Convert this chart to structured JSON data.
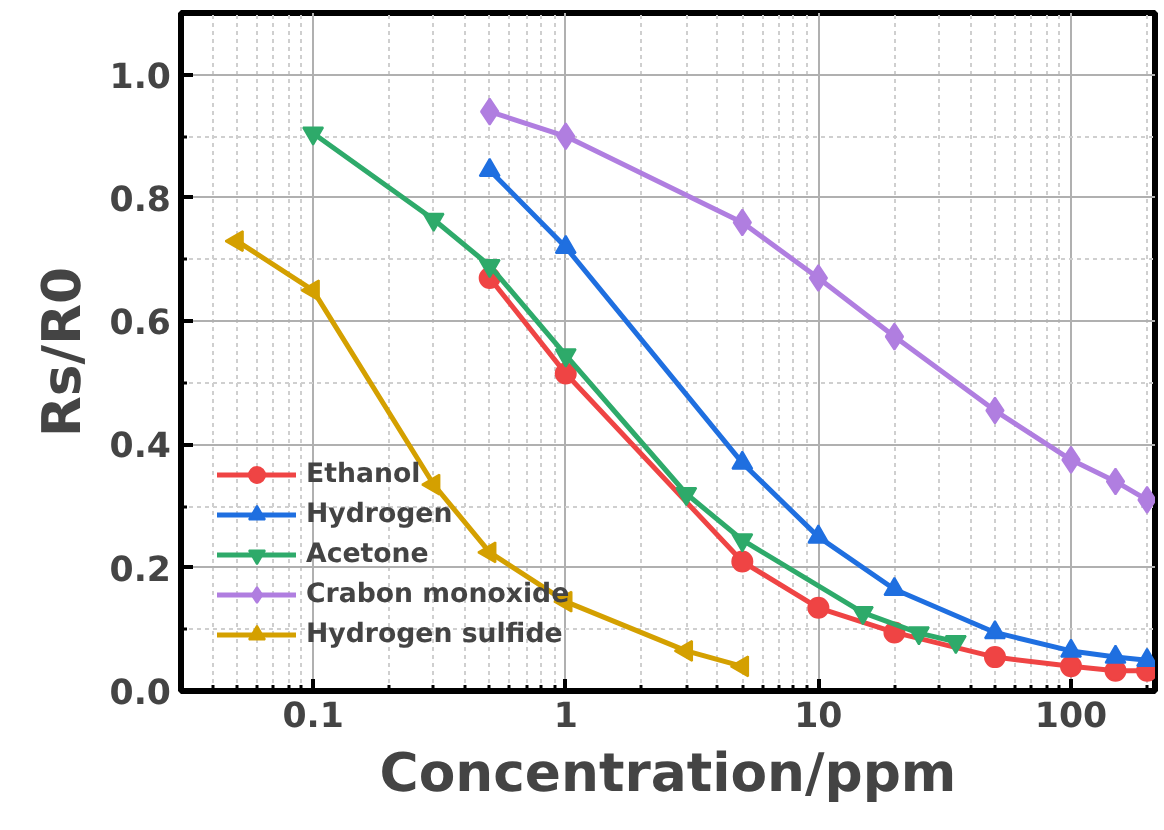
{
  "chart_data": {
    "type": "line",
    "xlabel": "Concentration/ppm",
    "ylabel": "Rs/R0",
    "log": "x",
    "xlim": [
      0.03,
      215
    ],
    "ylim": [
      0,
      1.1
    ],
    "xticks": [
      {
        "value": 0.1,
        "label": "0.1"
      },
      1,
      10,
      100
    ],
    "yticks": [
      {
        "value": 0,
        "label": "0.0"
      },
      {
        "value": 0.2,
        "label": "0.2"
      },
      {
        "value": 0.4,
        "label": "0.4"
      },
      {
        "value": 0.6,
        "label": "0.6"
      },
      {
        "value": 0.8,
        "label": "0.8"
      },
      {
        "value": 1,
        "label": "1.0"
      }
    ],
    "grid": true,
    "legend": "bottom left",
    "line_style": "solid",
    "series": [
      {
        "name": "Ethanol",
        "color": "#ef4444",
        "marker": "circle",
        "x": [
          0.5,
          1,
          5,
          10,
          20,
          50,
          100,
          150,
          200
        ],
        "values": [
          0.67,
          0.515,
          0.21,
          0.135,
          0.095,
          0.055,
          0.04,
          0.033,
          0.033
        ]
      },
      {
        "name": "Hydrogen",
        "color": "#1f6fe0",
        "marker": "triangle",
        "x": [
          0.5,
          1,
          5,
          10,
          20,
          50,
          100,
          150,
          200
        ],
        "values": [
          0.845,
          0.72,
          0.37,
          0.25,
          0.165,
          0.095,
          0.065,
          0.055,
          0.05
        ]
      },
      {
        "name": "Acetone",
        "color": "#2eaa6a",
        "marker": "triangle_down",
        "x": [
          0.1,
          0.3,
          0.5,
          1,
          3,
          5,
          15,
          25,
          35
        ],
        "values": [
          0.905,
          0.765,
          0.69,
          0.545,
          0.32,
          0.245,
          0.127,
          0.094,
          0.08
        ]
      },
      {
        "name": "Crabon monoxide",
        "color": "#b07ee0",
        "marker": "diamond",
        "x": [
          0.5,
          1,
          5,
          10,
          20,
          50,
          100,
          150,
          200
        ],
        "values": [
          0.94,
          0.9,
          0.76,
          0.67,
          0.575,
          0.455,
          0.375,
          0.34,
          0.31
        ]
      },
      {
        "name": "Hydrogen sulfide",
        "color": "#d4a000",
        "marker": "triangle_left",
        "x": [
          0.05,
          0.1,
          0.3,
          0.5,
          1,
          3,
          5
        ],
        "values": [
          0.73,
          0.65,
          0.335,
          0.225,
          0.145,
          0.065,
          0.04
        ]
      }
    ]
  }
}
